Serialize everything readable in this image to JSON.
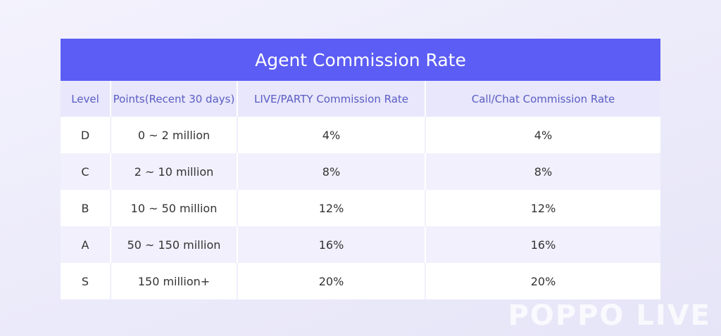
{
  "table": {
    "title": "Agent Commission Rate",
    "header": [
      "Level",
      "Points(Recent 30 days)",
      "LIVE/PARTY Commission Rate",
      "Call/Chat Commission Rate"
    ],
    "rows": [
      [
        "D",
        "0 ~ 2 million",
        "4%",
        "4%"
      ],
      [
        "C",
        "2 ~ 10 million",
        "8%",
        "8%"
      ],
      [
        "B",
        "10 ~ 50 million",
        "12%",
        "12%"
      ],
      [
        "A",
        "50 ~ 150 million",
        "16%",
        "16%"
      ],
      [
        "S",
        "150 million+",
        "20%",
        "20%"
      ]
    ]
  },
  "watermark": "POPPO LIVE"
}
